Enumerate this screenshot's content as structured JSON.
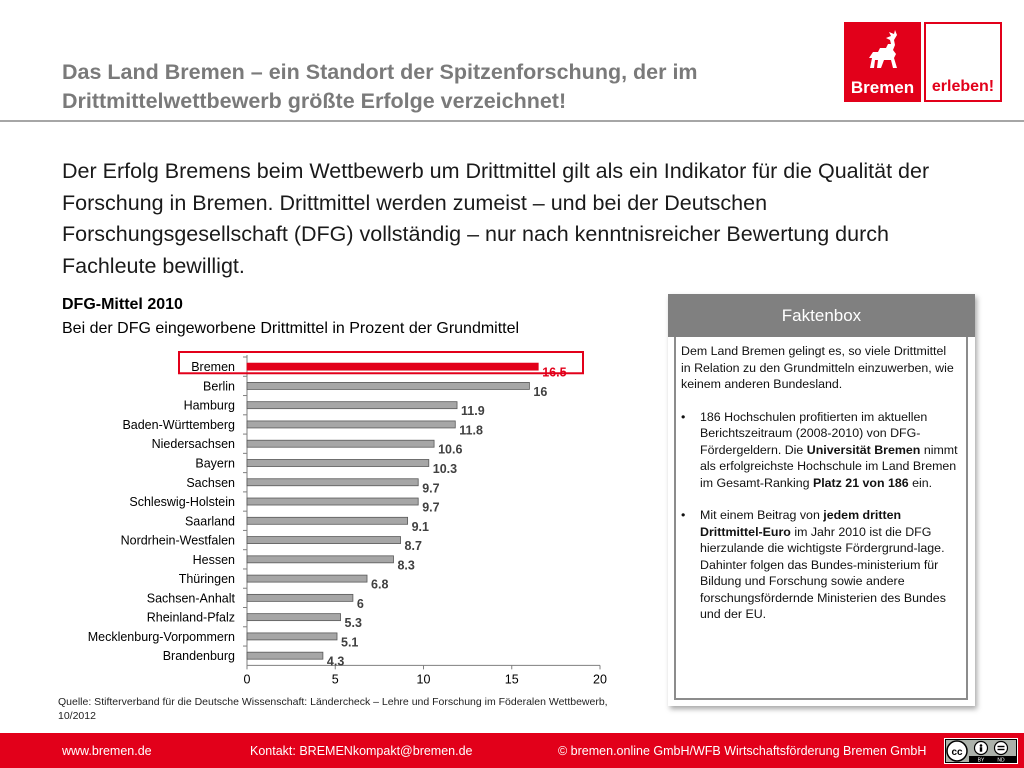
{
  "header": {
    "title": "Das Land Bremen – ein Standort der Spitzenforschung, der im Drittmittelwettbewerb größte Erfolge verzeichnet!",
    "logo_word_left": "Bremen",
    "logo_word_right": "erleben!"
  },
  "intro_text": "Der Erfolg Bremens beim Wettbewerb um Drittmittel gilt als ein Indikator für die Qualität der Forschung in Bremen. Drittmittel werden zumeist – und bei der Deutschen Forschungsgesellschaft (DFG) vollständig – nur nach kenntnisreicher Bewertung durch Fachleute bewilligt.",
  "chart_data": {
    "type": "bar",
    "orientation": "horizontal",
    "title": "DFG-Mittel 2010",
    "subtitle": "Bei der DFG eingeworbene Drittmittel in Prozent der Grundmittel",
    "categories": [
      "Bremen",
      "Berlin",
      "Hamburg",
      "Baden-Württemberg",
      "Niedersachsen",
      "Bayern",
      "Sachsen",
      "Schleswig-Holstein",
      "Saarland",
      "Nordrhein-Westfalen",
      "Hessen",
      "Thüringen",
      "Sachsen-Anhalt",
      "Rheinland-Pfalz",
      "Mecklenburg-Vorpommern",
      "Brandenburg"
    ],
    "values": [
      16.5,
      16,
      11.9,
      11.8,
      10.6,
      10.3,
      9.7,
      9.7,
      9.1,
      8.7,
      8.3,
      6.8,
      6,
      5.3,
      5.1,
      4.3
    ],
    "value_labels": [
      "16.5",
      "16",
      "11.9",
      "11.8",
      "10.6",
      "10.3",
      "9.7",
      "9.7",
      "9.1",
      "8.7",
      "8.3",
      "6.8",
      "6",
      "5.3",
      "5.1",
      "4.3"
    ],
    "highlight": "Bremen",
    "highlight_color": "#e2001a",
    "bar_color": "#a6a6a6",
    "xlim": [
      0,
      20
    ],
    "xticks": [
      0,
      5,
      10,
      15,
      20
    ],
    "grid": false,
    "legend": "none"
  },
  "source_text": "Quelle: Stifterverband für die Deutsche Wissenschaft: Ländercheck – Lehre und Forschung im Föderalen Wettbewerb, 10/2012",
  "factbox": {
    "title": "Faktenbox",
    "intro": "Dem Land Bremen gelingt es, so viele Drittmittel in Relation zu den Grundmitteln einzuwerben, wie keinem anderen Bundesland.",
    "bullet1": {
      "a": "186 Hochschulen profitierten im aktuellen Berichtszeitraum (2008-2010) von DFG-Fördergeldern. Die ",
      "b": "Universität Bremen",
      "c": " nimmt als erfolgreichste Hochschule im Land Bremen im Gesamt-Ranking ",
      "d": "Platz 21 von 186",
      "e": " ein."
    },
    "bullet2": {
      "a": "Mit einem Beitrag von ",
      "b": "jedem dritten Drittmittel-Euro",
      "c": " im Jahr 2010 ist die DFG hierzulande die wichtigste Fördergrund-lage. Dahinter folgen das Bundes-ministerium für Bildung und Forschung sowie andere forschungsfördernde Ministerien des Bundes und der EU."
    }
  },
  "footer": {
    "website": "www.bremen.de",
    "contact": "Kontakt: BREMENkompakt@bremen.de",
    "copyright": "© bremen.online GmbH/WFB Wirtschaftsförderung Bremen GmbH",
    "license_icon": "cc-by-nd-icon",
    "license_by": "BY",
    "license_nd": "ND"
  },
  "colors": {
    "brand_red": "#e2001a",
    "title_gray": "#7a7a7a",
    "factbox_header": "#808080"
  }
}
